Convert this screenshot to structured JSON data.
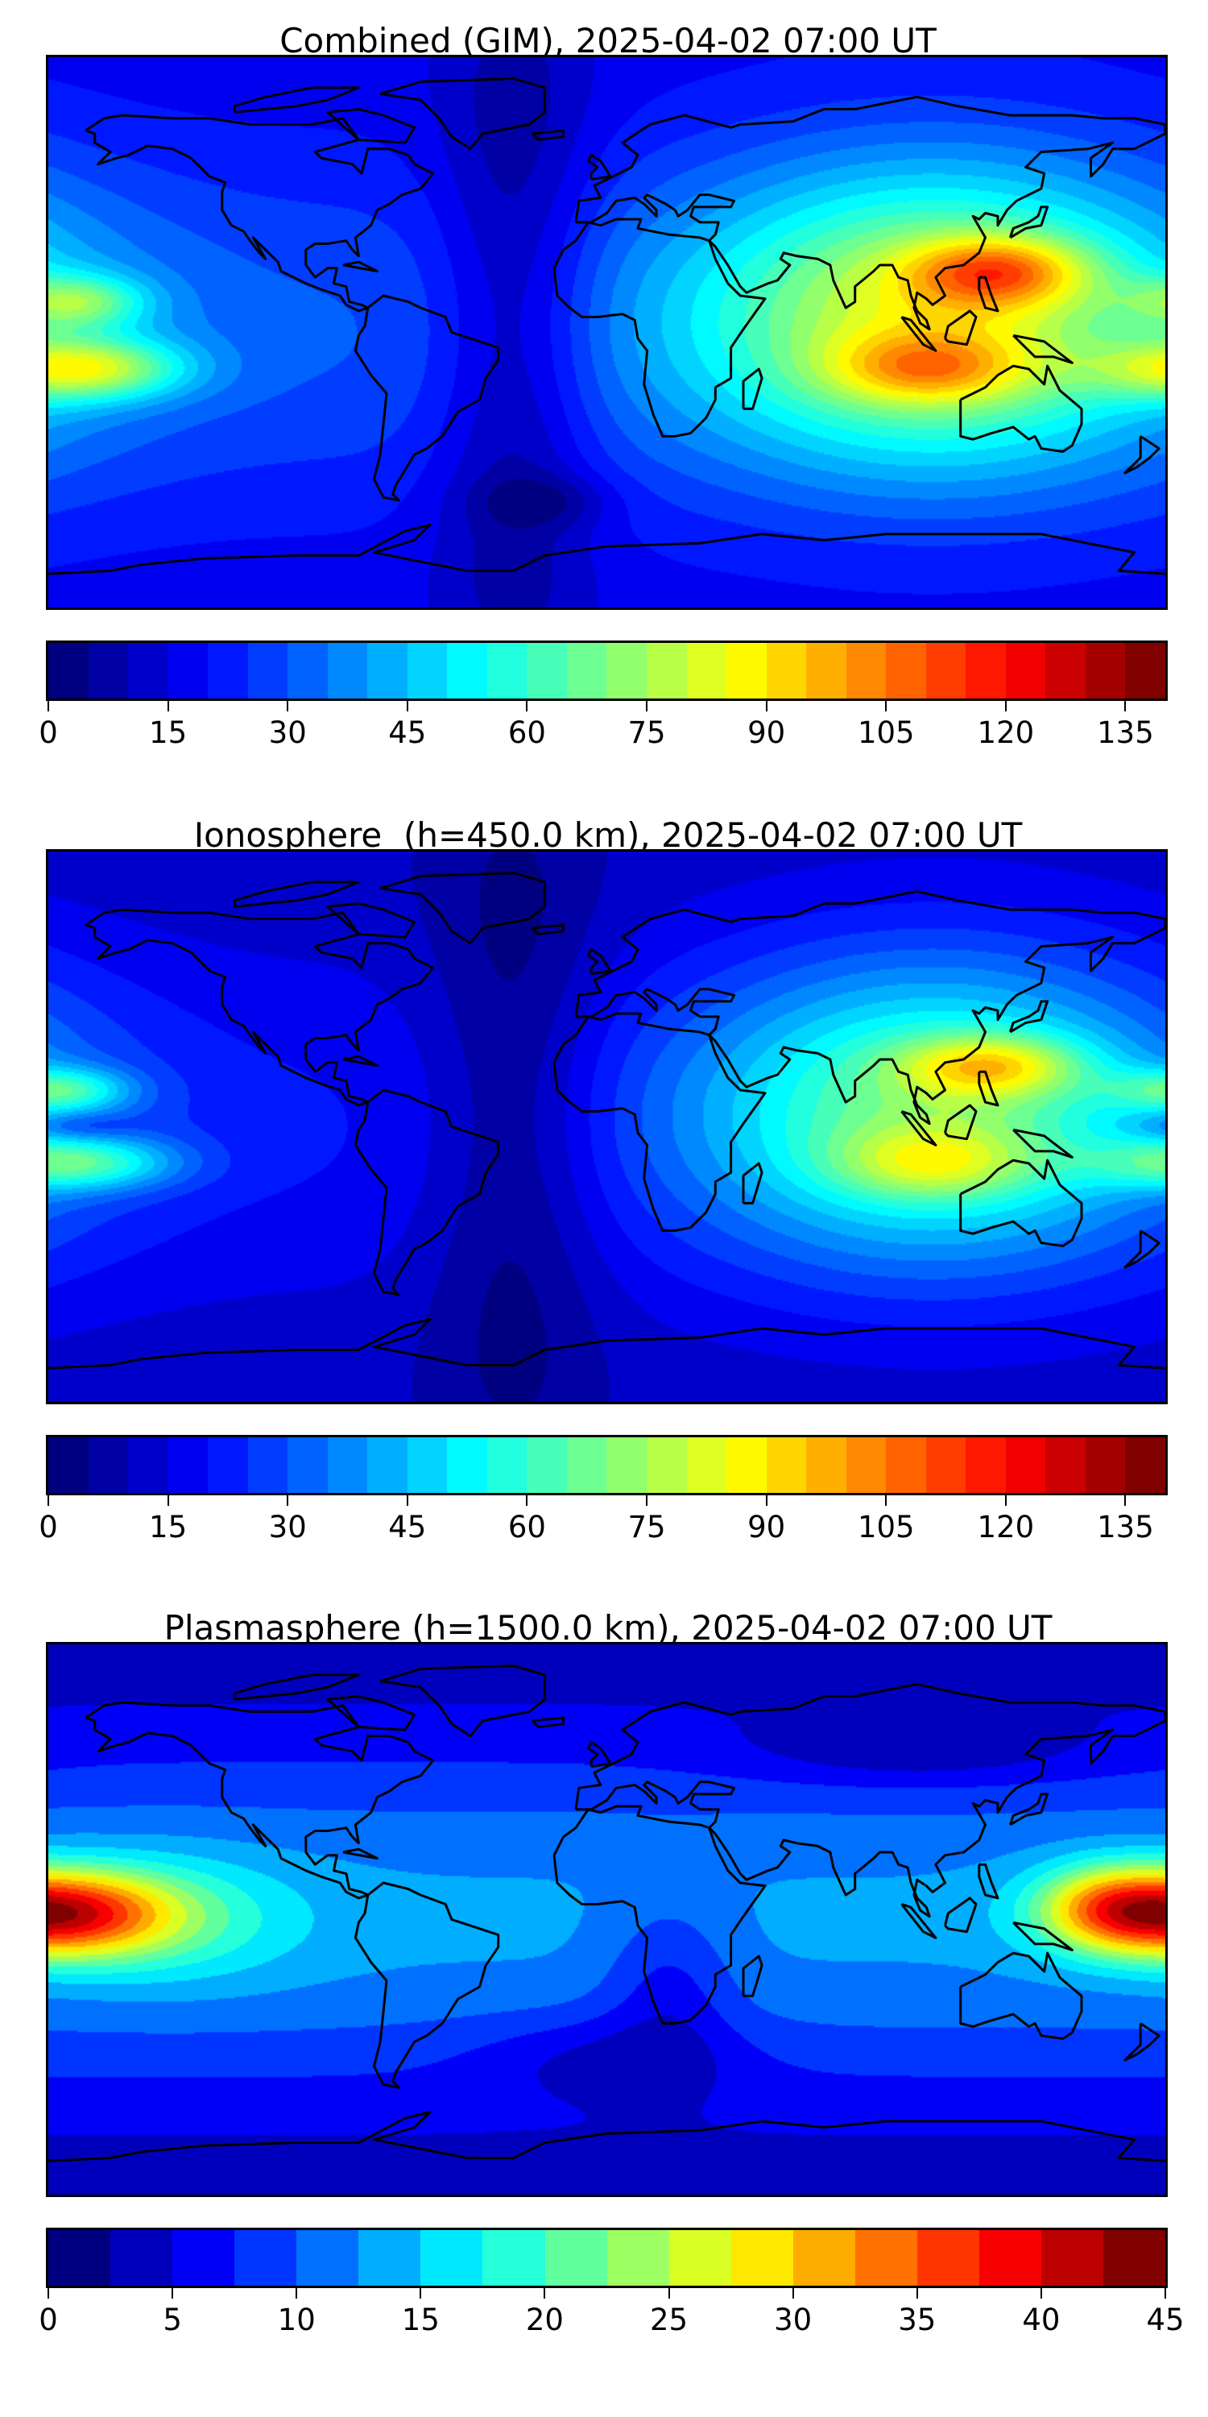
{
  "chart_data": [
    {
      "type": "heatmap",
      "title": "Combined (GIM), 2025-04-02 07:00 UT",
      "projection": "plate-carree",
      "lon_range": [
        -180,
        180
      ],
      "lat_range": [
        -90,
        90
      ],
      "colormap": "jet",
      "vmin": 0,
      "vmax": 140,
      "level_step": 5,
      "colorbar_ticks": [
        "0",
        "15",
        "30",
        "45",
        "60",
        "75",
        "90",
        "105",
        "120",
        "135"
      ],
      "colorbar_tick_values": [
        0,
        15,
        30,
        45,
        60,
        75,
        90,
        105,
        120,
        135
      ],
      "background": {
        "equator": 30,
        "pole": 18
      },
      "field_sources": [
        {
          "lon": 105,
          "lat": 5,
          "amp": 55,
          "slon": 55,
          "slat": 35
        },
        {
          "lon": 126,
          "lat": 20,
          "amp": 40,
          "slon": 20,
          "slat": 8
        },
        {
          "lon": 103,
          "lat": -12,
          "amp": 30,
          "slon": 22,
          "slat": 8
        },
        {
          "lon": -30,
          "lat": 0,
          "amp": -18,
          "slon": 18,
          "slat": 80
        },
        {
          "lon": -168,
          "lat": -12,
          "amp": 45,
          "slon": 22,
          "slat": 7
        },
        {
          "lon": -170,
          "lat": 10,
          "amp": 30,
          "slon": 15,
          "slat": 6
        },
        {
          "lon": -20,
          "lat": -55,
          "amp": -10,
          "slon": 15,
          "slat": 6
        }
      ]
    },
    {
      "type": "heatmap",
      "title": "Ionosphere  (h=450.0 km), 2025-04-02 07:00 UT",
      "projection": "plate-carree",
      "lon_range": [
        -180,
        180
      ],
      "lat_range": [
        -90,
        90
      ],
      "colormap": "jet",
      "vmin": 0,
      "vmax": 140,
      "level_step": 5,
      "colorbar_ticks": [
        "0",
        "15",
        "30",
        "45",
        "60",
        "75",
        "90",
        "105",
        "120",
        "135"
      ],
      "colorbar_tick_values": [
        0,
        15,
        30,
        45,
        60,
        75,
        90,
        105,
        120,
        135
      ],
      "background": {
        "equator": 20,
        "pole": 12
      },
      "field_sources": [
        {
          "lon": 105,
          "lat": 5,
          "amp": 50,
          "slon": 55,
          "slat": 35
        },
        {
          "lon": 124,
          "lat": 20,
          "amp": 35,
          "slon": 20,
          "slat": 7
        },
        {
          "lon": 105,
          "lat": -12,
          "amp": 25,
          "slon": 22,
          "slat": 8
        },
        {
          "lon": -30,
          "lat": 0,
          "amp": -14,
          "slon": 20,
          "slat": 80
        },
        {
          "lon": -170,
          "lat": -12,
          "amp": 35,
          "slon": 22,
          "slat": 6
        },
        {
          "lon": -175,
          "lat": 12,
          "amp": 30,
          "slon": 15,
          "slat": 5
        },
        {
          "lon": -170,
          "lat": 0,
          "amp": -10,
          "slon": 12,
          "slat": 3
        }
      ]
    },
    {
      "type": "heatmap",
      "title": "Plasmasphere (h=1500.0 km), 2025-04-02 07:00 UT",
      "projection": "plate-carree",
      "lon_range": [
        -180,
        180
      ],
      "lat_range": [
        -90,
        90
      ],
      "colormap": "jet",
      "vmin": 0,
      "vmax": 45,
      "level_step": 2.5,
      "colorbar_ticks": [
        "0",
        "5",
        "10",
        "15",
        "20",
        "25",
        "30",
        "35",
        "40",
        "45"
      ],
      "colorbar_tick_values": [
        0,
        5,
        10,
        15,
        20,
        25,
        30,
        35,
        40,
        45
      ],
      "background": {
        "equator": 13,
        "pole": 4
      },
      "field_sources": [
        {
          "lon": -178,
          "lat": 2,
          "amp": 26,
          "slon": 25,
          "slat": 10
        },
        {
          "lon": -140,
          "lat": 0,
          "amp": 6,
          "slon": 30,
          "slat": 15
        },
        {
          "lon": 160,
          "lat": 5,
          "amp": 8,
          "slon": 15,
          "slat": 10
        },
        {
          "lon": 100,
          "lat": 55,
          "amp": -4,
          "slon": 40,
          "slat": 8
        },
        {
          "lon": 20,
          "lat": -20,
          "amp": -5,
          "slon": 15,
          "slat": 20
        },
        {
          "lon": 0,
          "lat": -45,
          "amp": -4,
          "slon": 30,
          "slat": 10
        }
      ]
    }
  ]
}
